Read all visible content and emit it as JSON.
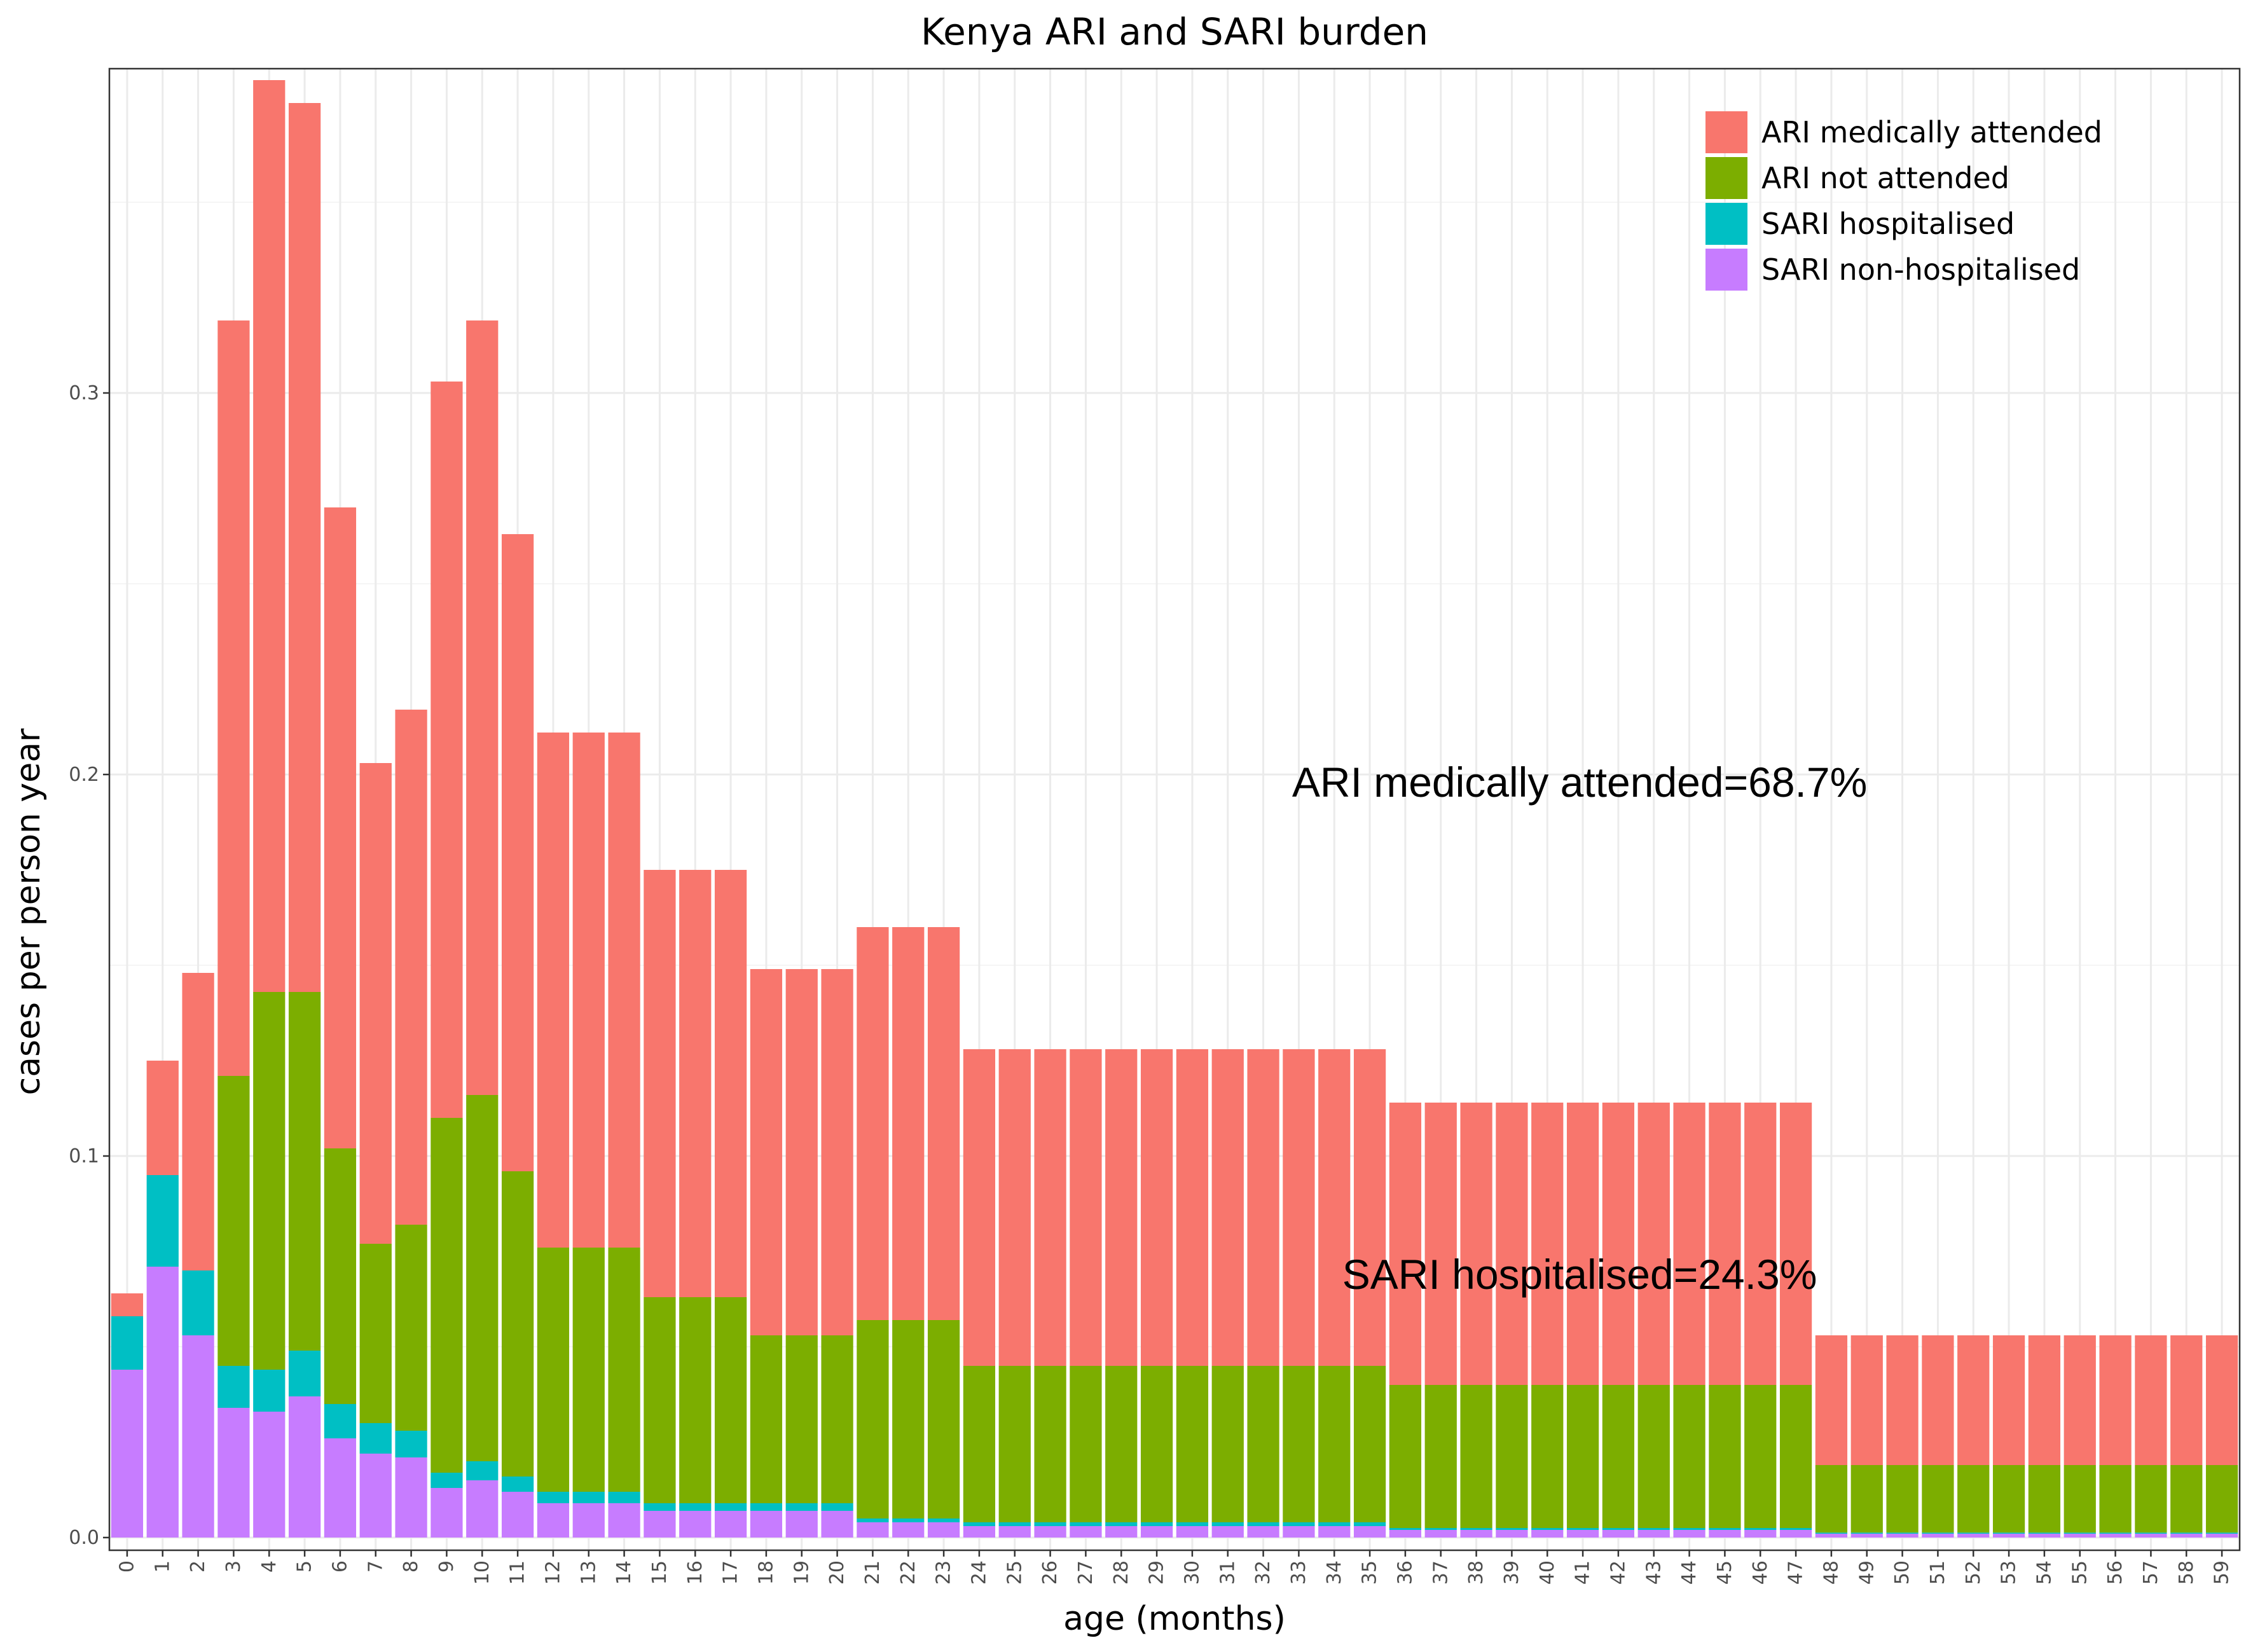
{
  "chart_data": {
    "type": "bar",
    "stacked": true,
    "title": "Kenya ARI and SARI burden",
    "xlabel": "age (months)",
    "ylabel": "cases per person year",
    "ylim": [
      0,
      0.38
    ],
    "yticks": [
      0.0,
      0.1,
      0.2,
      0.3
    ],
    "ytick_labels": [
      "0.0",
      "0.1",
      "0.2",
      "0.3"
    ],
    "grid": true,
    "legend_position": "top-right",
    "categories": [
      "0",
      "1",
      "2",
      "3",
      "4",
      "5",
      "6",
      "7",
      "8",
      "9",
      "10",
      "11",
      "12",
      "13",
      "14",
      "15",
      "16",
      "17",
      "18",
      "19",
      "20",
      "21",
      "22",
      "23",
      "24",
      "25",
      "26",
      "27",
      "28",
      "29",
      "30",
      "31",
      "32",
      "33",
      "34",
      "35",
      "36",
      "37",
      "38",
      "39",
      "40",
      "41",
      "42",
      "43",
      "44",
      "45",
      "46",
      "47",
      "48",
      "49",
      "50",
      "51",
      "52",
      "53",
      "54",
      "55",
      "56",
      "57",
      "58",
      "59"
    ],
    "series": [
      {
        "name": "SARI non-hospitalised",
        "color": "#C77CFF",
        "values": [
          0.044,
          0.071,
          0.053,
          0.034,
          0.033,
          0.037,
          0.026,
          0.022,
          0.021,
          0.013,
          0.015,
          0.012,
          0.009,
          0.009,
          0.009,
          0.007,
          0.007,
          0.007,
          0.007,
          0.007,
          0.007,
          0.004,
          0.004,
          0.004,
          0.003,
          0.003,
          0.003,
          0.003,
          0.003,
          0.003,
          0.003,
          0.003,
          0.003,
          0.003,
          0.003,
          0.003,
          0.002,
          0.002,
          0.002,
          0.002,
          0.002,
          0.002,
          0.002,
          0.002,
          0.002,
          0.002,
          0.002,
          0.002,
          0.001,
          0.001,
          0.001,
          0.001,
          0.001,
          0.001,
          0.001,
          0.001,
          0.001,
          0.001,
          0.001,
          0.001
        ]
      },
      {
        "name": "SARI hospitalised",
        "color": "#00BFC4",
        "values": [
          0.014,
          0.024,
          0.017,
          0.011,
          0.011,
          0.012,
          0.009,
          0.008,
          0.007,
          0.004,
          0.005,
          0.004,
          0.003,
          0.003,
          0.003,
          0.002,
          0.002,
          0.002,
          0.002,
          0.002,
          0.002,
          0.001,
          0.001,
          0.001,
          0.001,
          0.001,
          0.001,
          0.001,
          0.001,
          0.001,
          0.001,
          0.001,
          0.001,
          0.001,
          0.001,
          0.001,
          0.0005,
          0.0005,
          0.0005,
          0.0005,
          0.0005,
          0.0005,
          0.0005,
          0.0005,
          0.0005,
          0.0005,
          0.0005,
          0.0005,
          0.0003,
          0.0003,
          0.0003,
          0.0003,
          0.0003,
          0.0003,
          0.0003,
          0.0003,
          0.0003,
          0.0003,
          0.0003,
          0.0003
        ]
      },
      {
        "name": "ARI not attended",
        "color": "#7CAE00",
        "values": [
          0.0,
          0.0,
          0.0,
          0.076,
          0.099,
          0.094,
          0.067,
          0.047,
          0.054,
          0.093,
          0.096,
          0.08,
          0.064,
          0.064,
          0.064,
          0.054,
          0.054,
          0.054,
          0.044,
          0.044,
          0.044,
          0.052,
          0.052,
          0.052,
          0.041,
          0.041,
          0.041,
          0.041,
          0.041,
          0.041,
          0.041,
          0.041,
          0.041,
          0.041,
          0.041,
          0.041,
          0.0375,
          0.0375,
          0.0375,
          0.0375,
          0.0375,
          0.0375,
          0.0375,
          0.0375,
          0.0375,
          0.0375,
          0.0375,
          0.0375,
          0.0177,
          0.0177,
          0.0177,
          0.0177,
          0.0177,
          0.0177,
          0.0177,
          0.0177,
          0.0177,
          0.0177,
          0.0177,
          0.0177
        ]
      },
      {
        "name": "ARI medically attended",
        "color": "#F8766D",
        "values": [
          0.006,
          0.03,
          0.078,
          0.198,
          0.239,
          0.233,
          0.168,
          0.126,
          0.135,
          0.193,
          0.203,
          0.167,
          0.135,
          0.135,
          0.135,
          0.112,
          0.112,
          0.112,
          0.096,
          0.096,
          0.096,
          0.103,
          0.103,
          0.103,
          0.083,
          0.083,
          0.083,
          0.083,
          0.083,
          0.083,
          0.083,
          0.083,
          0.083,
          0.083,
          0.083,
          0.083,
          0.074,
          0.074,
          0.074,
          0.074,
          0.074,
          0.074,
          0.074,
          0.074,
          0.074,
          0.074,
          0.074,
          0.074,
          0.034,
          0.034,
          0.034,
          0.034,
          0.034,
          0.034,
          0.034,
          0.034,
          0.034,
          0.034,
          0.034,
          0.034
        ]
      }
    ],
    "legend_order": [
      "ARI medically attended",
      "ARI not attended",
      "SARI hospitalised",
      "SARI non-hospitalised"
    ],
    "annotations": [
      {
        "text": "ARI medically attended=68.7%",
        "x": "41",
        "y": 0.198
      },
      {
        "text": "SARI hospitalised=24.3%",
        "x": "41",
        "y": 0.069
      }
    ]
  }
}
